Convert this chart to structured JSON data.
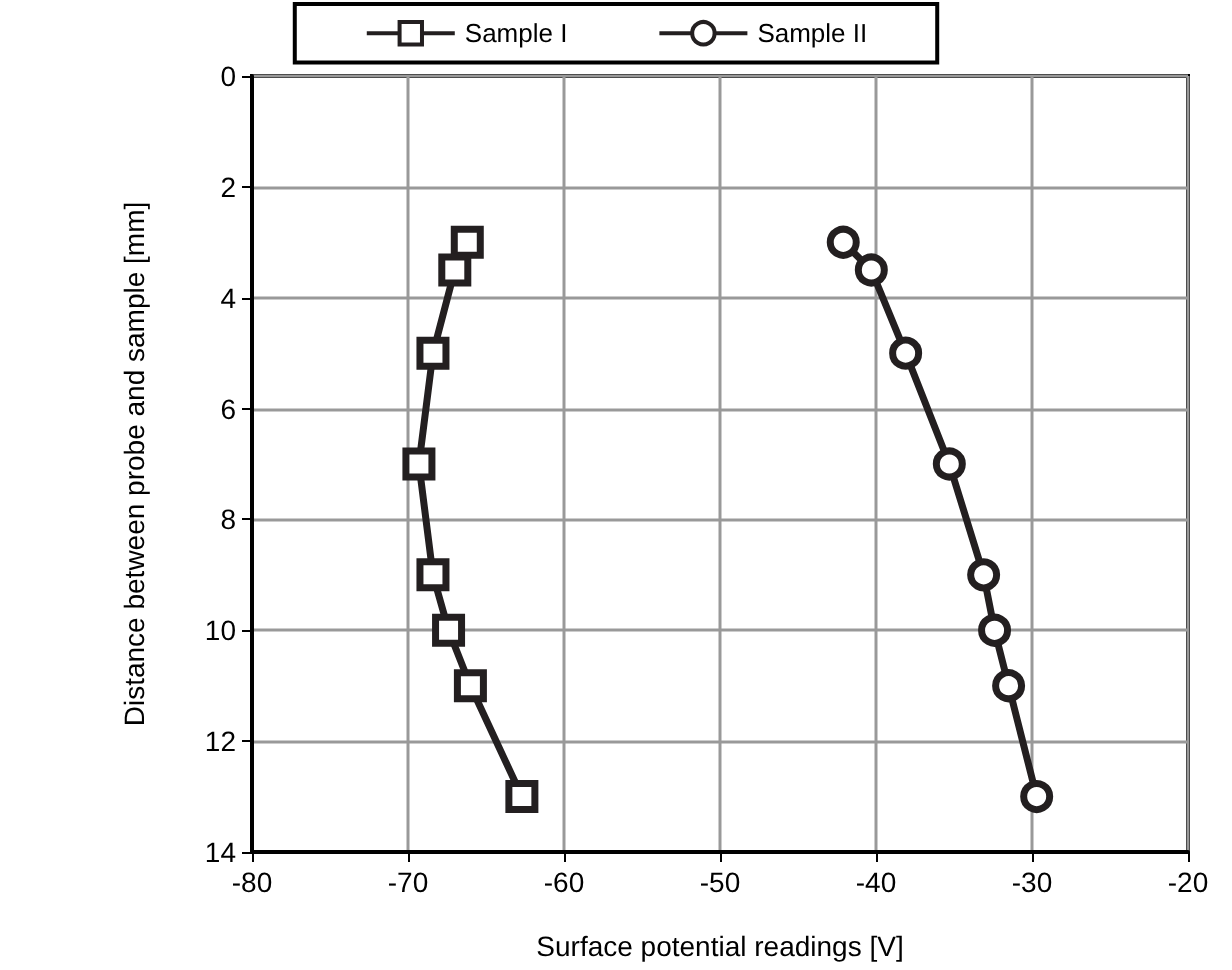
{
  "chart_data": {
    "type": "line",
    "xlabel": "Surface potential readings [V]",
    "ylabel": "Distance between probe and sample [mm]",
    "xlim": [
      -80,
      -20
    ],
    "xticks": [
      -80,
      -70,
      -60,
      -50,
      -40,
      -30,
      -20
    ],
    "ylim": [
      14,
      0
    ],
    "yticks": [
      0,
      2,
      4,
      6,
      8,
      10,
      12,
      14
    ],
    "grid": true,
    "legend": "top",
    "line_style": "solid",
    "series": [
      {
        "name": "Sample I",
        "color": "#231f20",
        "marker": "square",
        "x": [
          -66.2,
          -67.0,
          -68.4,
          -69.3,
          -68.4,
          -67.4,
          -66.0,
          -62.7
        ],
        "values": [
          3,
          3.5,
          5,
          7,
          9,
          10,
          11,
          13
        ]
      },
      {
        "name": "Sample II",
        "color": "#231f20",
        "marker": "circle",
        "x": [
          -42.1,
          -40.3,
          -38.1,
          -35.3,
          -33.1,
          -32.4,
          -31.5,
          -29.7
        ],
        "values": [
          3,
          3.5,
          5,
          7,
          9,
          10,
          11,
          13
        ]
      }
    ]
  }
}
